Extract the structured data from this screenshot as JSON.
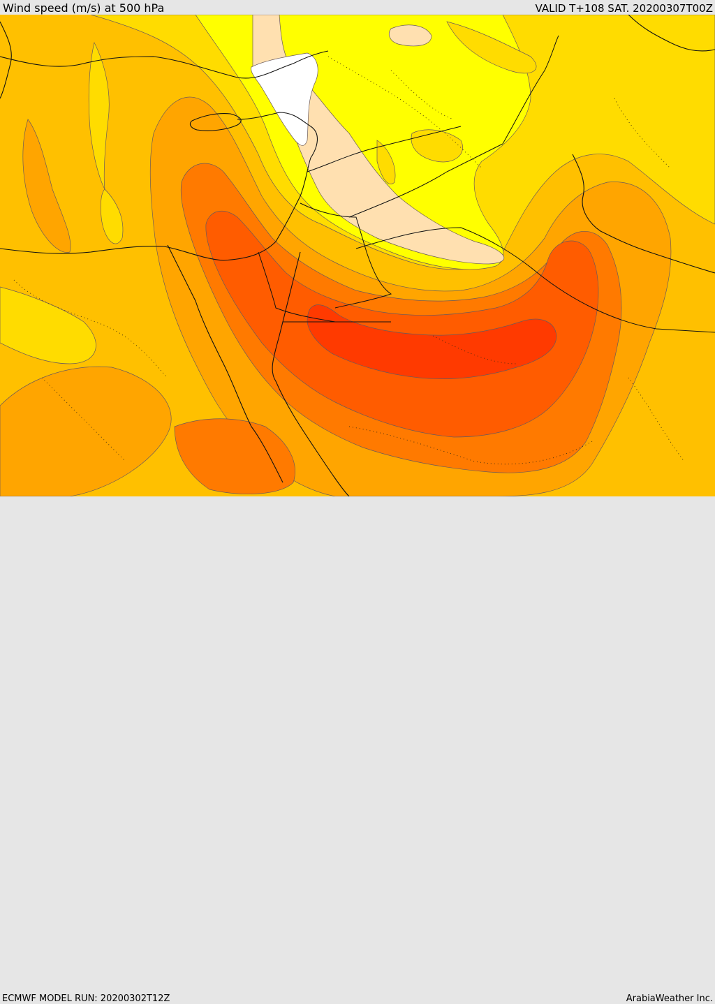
{
  "header": {
    "title": "Wind speed (m/s) at 500 hPa",
    "valid": "VALID T+108 SAT. 20200307T00Z"
  },
  "footer": {
    "model_run": "ECMWF MODEL RUN: 20200302T12Z",
    "credit": "ArabiaWeather Inc."
  },
  "colors": {
    "white": "#ffffff",
    "peach": "#ffe0b0",
    "yellow": "#ffff00",
    "gold": "#ffdc00",
    "amber": "#ffc000",
    "orange_light": "#ffa500",
    "orange": "#ff7a00",
    "orange_dark": "#ff5c00",
    "red_orange": "#ff3a00"
  }
}
